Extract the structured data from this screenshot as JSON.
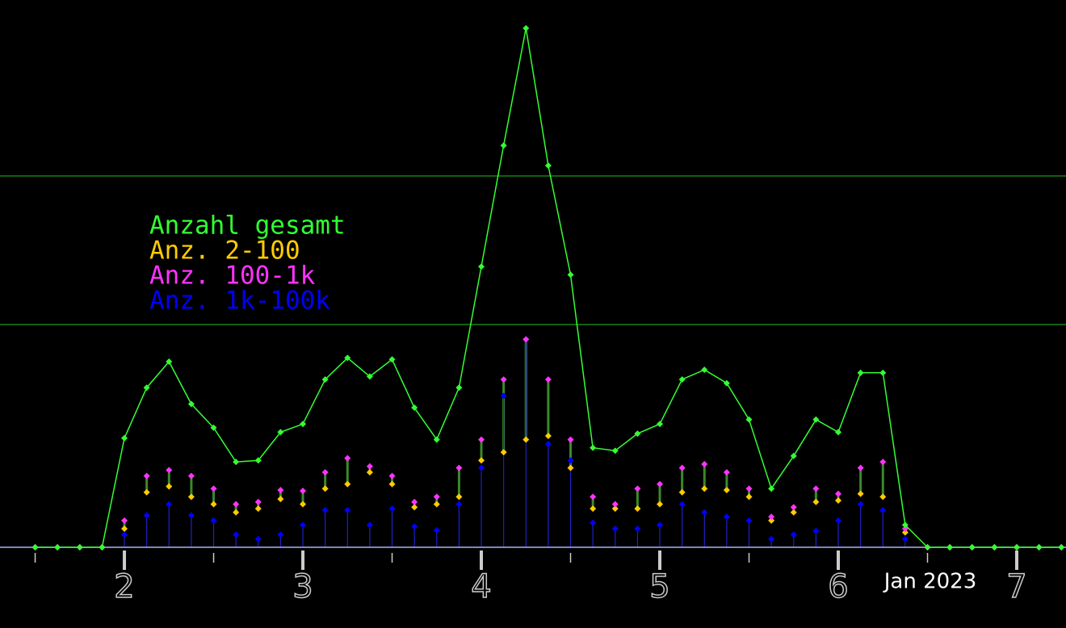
{
  "chart_data": {
    "type": "line",
    "x_label": "Jan 2023",
    "xlim": [
      1.303,
      7.276
    ],
    "xticks": [
      2,
      3,
      4,
      5,
      6,
      7
    ],
    "xminorticks": [
      1.5,
      2.5,
      3.5,
      4.5,
      5.5,
      6.5
    ],
    "ylim": [
      0,
      737
    ],
    "reference_lines": [
      300,
      500
    ],
    "x": [
      1.5,
      1.625,
      1.75,
      1.875,
      2.0,
      2.125,
      2.25,
      2.375,
      2.5,
      2.625,
      2.75,
      2.875,
      3.0,
      3.125,
      3.25,
      3.375,
      3.5,
      3.625,
      3.75,
      3.875,
      4.0,
      4.125,
      4.25,
      4.375,
      4.5,
      4.625,
      4.75,
      4.875,
      5.0,
      5.125,
      5.25,
      5.375,
      5.5,
      5.625,
      5.75,
      5.875,
      6.0,
      6.125,
      6.25,
      6.375,
      6.5,
      6.625,
      6.75,
      6.875,
      7.0,
      7.125,
      7.25
    ],
    "series": [
      {
        "name": "Anzahl gesamt",
        "color": "#33ff33",
        "values": [
          0,
          0,
          0,
          0,
          147,
          215,
          250,
          193,
          161,
          115,
          117,
          155,
          166,
          226,
          255,
          230,
          253,
          188,
          145,
          215,
          378,
          541,
          699,
          514,
          367,
          134,
          130,
          153,
          166,
          226,
          239,
          221,
          172,
          79,
          123,
          172,
          155,
          235,
          235,
          30,
          0,
          0,
          0,
          0,
          0,
          0,
          0
        ]
      },
      {
        "name": "Anz. 2-100",
        "color": "#ffcc00",
        "values": [
          0,
          0,
          0,
          0,
          25,
          74,
          82,
          68,
          58,
          47,
          52,
          65,
          58,
          79,
          85,
          101,
          85,
          54,
          58,
          68,
          117,
          128,
          145,
          150,
          107,
          52,
          52,
          52,
          58,
          74,
          79,
          77,
          68,
          36,
          47,
          61,
          63,
          72,
          68,
          20,
          0,
          0,
          0,
          0,
          0,
          0,
          0
        ]
      },
      {
        "name": "Anz. 100-1k",
        "color": "#ff33ff",
        "values": [
          0,
          0,
          0,
          0,
          36,
          96,
          104,
          96,
          79,
          58,
          61,
          77,
          76,
          101,
          120,
          109,
          96,
          61,
          68,
          107,
          145,
          226,
          280,
          226,
          145,
          68,
          58,
          79,
          85,
          107,
          112,
          101,
          79,
          41,
          54,
          79,
          72,
          107,
          115,
          25,
          0,
          0,
          0,
          0,
          0,
          0,
          0
        ]
      },
      {
        "name": "Anz. 1k-100k",
        "color": "#0000ff",
        "values": [
          0,
          0,
          0,
          0,
          17,
          43,
          58,
          43,
          36,
          17,
          11,
          17,
          30,
          50,
          50,
          30,
          52,
          28,
          23,
          58,
          107,
          204,
          280,
          139,
          117,
          33,
          25,
          25,
          30,
          58,
          47,
          41,
          36,
          11,
          17,
          22,
          36,
          58,
          50,
          11,
          0,
          0,
          0,
          0,
          0,
          0,
          0
        ]
      }
    ]
  }
}
